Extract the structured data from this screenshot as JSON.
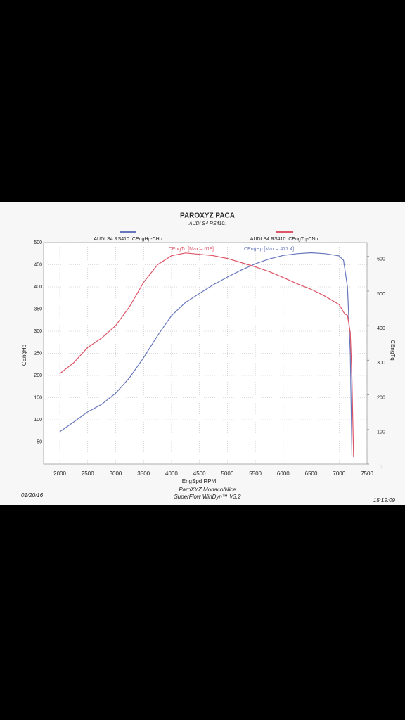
{
  "chart_data": {
    "type": "line",
    "title": "PAROXYZ PACA",
    "subtitle": "AUDI S4 RS410.",
    "x_label": "EngSpd RPM",
    "y_label": "CEngHp",
    "y2_label": "CEngTq",
    "xlim": [
      1710,
      7500
    ],
    "xticks": [
      2000,
      2500,
      3000,
      3500,
      4000,
      4500,
      5000,
      5500,
      6000,
      6500,
      7000,
      7500
    ],
    "ylim": [
      0,
      500
    ],
    "yticks": [
      50,
      100,
      150,
      200,
      250,
      300,
      350,
      400,
      450,
      500
    ],
    "y2lim": [
      0,
      640
    ],
    "y2ticks": [
      0,
      100,
      200,
      300,
      400,
      500,
      600
    ],
    "grid": true,
    "annotations": [
      "CEngTq [Max = 618]",
      "CEngHp [Max = 477.4]"
    ],
    "footer": [
      "ParoXYZ Monaco/Nice",
      "SuperFlow WinDyn™ V3.2"
    ],
    "date": "01/20/16",
    "time": "15:19:09",
    "series": [
      {
        "name": "AUDI S4 RS410: CEngHp-CHp",
        "color": "#6677bb",
        "axis": "y",
        "x": [
          2000,
          2250,
          2500,
          2750,
          3000,
          3250,
          3500,
          3750,
          4000,
          4250,
          4500,
          4750,
          5000,
          5250,
          5500,
          5750,
          6000,
          6250,
          6500,
          6750,
          7000,
          7080,
          7150,
          7200,
          7230
        ],
        "values": [
          73,
          95,
          118,
          135,
          160,
          195,
          240,
          290,
          335,
          365,
          385,
          405,
          422,
          438,
          452,
          463,
          471,
          475,
          477,
          475,
          470,
          460,
          400,
          250,
          20
        ]
      },
      {
        "name": "AUDI S4 RS410: CEngTq-CNm",
        "color": "#dd5566",
        "axis": "y2",
        "x": [
          2000,
          2250,
          2500,
          2750,
          3000,
          3250,
          3500,
          3750,
          4000,
          4250,
          4500,
          4750,
          5000,
          5250,
          5500,
          5750,
          6000,
          6250,
          6500,
          6750,
          7000,
          7100,
          7150,
          7200,
          7230,
          7260
        ],
        "values": [
          261,
          293,
          337,
          364,
          400,
          455,
          525,
          576,
          602,
          610,
          606,
          602,
          594,
          582,
          570,
          556,
          539,
          521,
          505,
          485,
          461,
          434,
          430,
          380,
          250,
          20
        ]
      }
    ]
  }
}
